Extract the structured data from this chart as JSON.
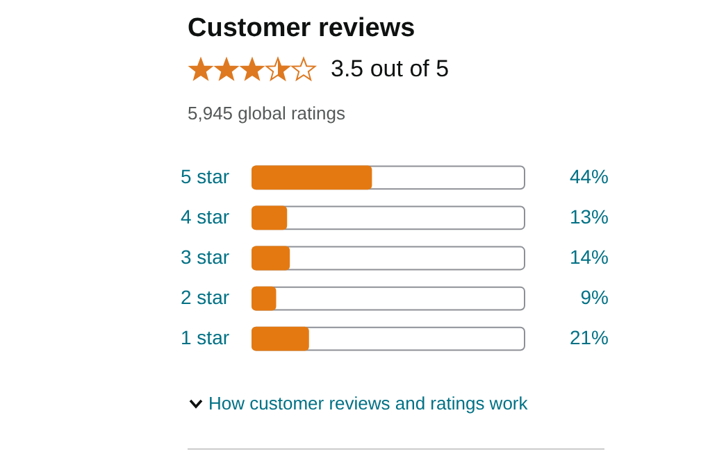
{
  "chart_data": {
    "type": "bar",
    "orientation": "horizontal",
    "title": "Customer reviews",
    "annotations": [
      "3.5 out of 5",
      "5,945 global ratings",
      "How customer reviews and ratings work"
    ],
    "categories": [
      "5 star",
      "4 star",
      "3 star",
      "2 star",
      "1 star"
    ],
    "values": [
      44,
      13,
      14,
      9,
      21
    ],
    "value_labels": [
      "44%",
      "13%",
      "14%",
      "9%",
      "21%"
    ],
    "color": "#e47911",
    "xlim": [
      0,
      100
    ],
    "tick_labels": "y"
  }
}
